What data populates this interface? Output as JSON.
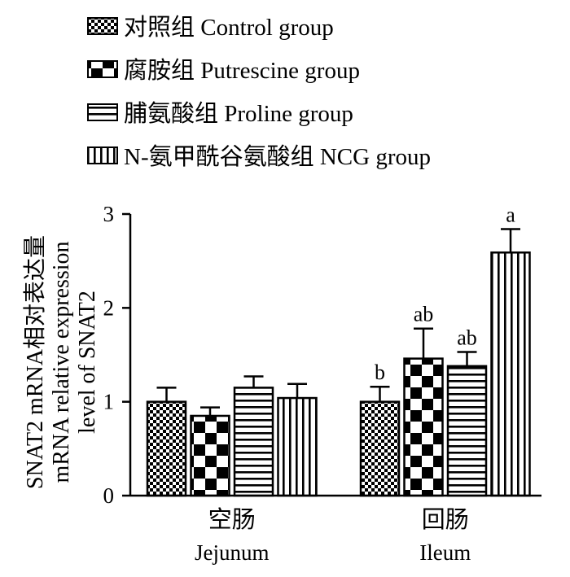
{
  "chart_data": {
    "type": "bar",
    "legend_position": "top-left",
    "series": [
      {
        "name": "对照组 Control group",
        "pattern": "checker-small",
        "values": [
          1.0,
          1.0
        ],
        "errors": [
          0.15,
          0.16
        ],
        "labels": [
          "",
          "b"
        ]
      },
      {
        "name": "腐胺组 Putrescine group",
        "pattern": "checker-large",
        "values": [
          0.85,
          1.46
        ],
        "errors": [
          0.09,
          0.32
        ],
        "labels": [
          "",
          "ab"
        ]
      },
      {
        "name": "脯氨酸组 Proline group",
        "pattern": "horizontal-stripes",
        "values": [
          1.15,
          1.38
        ],
        "errors": [
          0.12,
          0.15
        ],
        "labels": [
          "",
          "ab"
        ]
      },
      {
        "name": "N-氨甲酰谷氨酸组 NCG group",
        "pattern": "vertical-stripes",
        "values": [
          1.04,
          2.59
        ],
        "errors": [
          0.15,
          0.25
        ],
        "labels": [
          "",
          "a"
        ]
      }
    ],
    "categories": [
      {
        "cn": "空肠",
        "en": "Jejunum"
      },
      {
        "cn": "回肠",
        "en": "Ileum"
      }
    ],
    "ylabel_lines": [
      "SNAT2 mRNA相对表达量",
      "mRNA relative expression",
      "level of SNAT2"
    ],
    "ylim": [
      0,
      3
    ],
    "yticks": [
      "0",
      "1",
      "2",
      "3"
    ],
    "grid": false
  }
}
